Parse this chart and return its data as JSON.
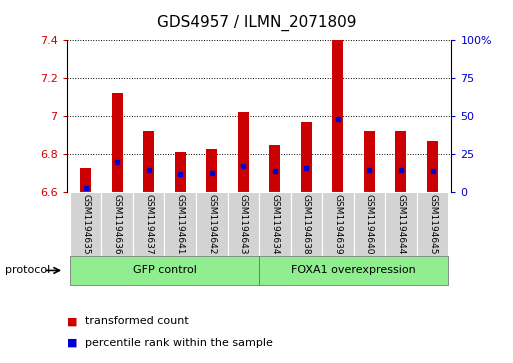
{
  "title": "GDS4957 / ILMN_2071809",
  "samples": [
    "GSM1194635",
    "GSM1194636",
    "GSM1194637",
    "GSM1194641",
    "GSM1194642",
    "GSM1194643",
    "GSM1194634",
    "GSM1194638",
    "GSM1194639",
    "GSM1194640",
    "GSM1194644",
    "GSM1194645"
  ],
  "transformed_counts": [
    6.73,
    7.12,
    6.92,
    6.81,
    6.83,
    7.02,
    6.85,
    6.97,
    7.4,
    6.92,
    6.92,
    6.87
  ],
  "percentile_ranks": [
    3,
    20,
    15,
    12,
    13,
    17,
    14,
    16,
    48,
    15,
    15,
    14
  ],
  "baseline": 6.6,
  "ylim": [
    6.6,
    7.4
  ],
  "ylim_right": [
    0,
    100
  ],
  "yticks_left": [
    6.6,
    6.8,
    7.0,
    7.2,
    7.4
  ],
  "yticks_right": [
    0,
    25,
    50,
    75,
    100
  ],
  "bar_color": "#cc0000",
  "blue_color": "#0000cc",
  "group1_label": "GFP control",
  "group2_label": "FOXA1 overexpression",
  "group1_count": 6,
  "group2_count": 6,
  "legend_items": [
    "transformed count",
    "percentile rank within the sample"
  ],
  "group_bg_color": "#90ee90",
  "sample_bg_color": "#d3d3d3",
  "grid_color": "#000000",
  "left_label_color": "#cc0000",
  "right_label_color": "#0000cc",
  "protocol_label": "protocol",
  "tick_fontsize": 8,
  "bar_width": 0.35
}
